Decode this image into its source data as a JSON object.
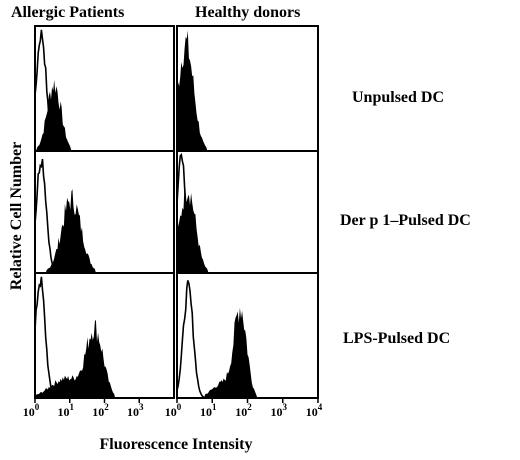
{
  "chart_data": {
    "type": "histogram-grid",
    "column_headers": [
      "Allergic Patients",
      "Healthy donors"
    ],
    "row_labels": [
      "Unpulsed DC",
      "Der p 1–Pulsed DC",
      "LPS-Pulsed DC"
    ],
    "ylabel": "Relative Cell Number",
    "xlabel": "Fluorescence Intensity",
    "x_scale": "log",
    "xlim": [
      1,
      10000
    ],
    "x_ticks": [
      {
        "value": 1,
        "label_base": "10",
        "label_exp": "0"
      },
      {
        "value": 10,
        "label_base": "10",
        "label_exp": "1"
      },
      {
        "value": 100,
        "label_base": "10",
        "label_exp": "2"
      },
      {
        "value": 1000,
        "label_base": "10",
        "label_exp": "3"
      },
      {
        "value": 10000,
        "label_base": "10",
        "label_exp": "4"
      }
    ],
    "panels": [
      {
        "row": 0,
        "col": 0,
        "control": {
          "peak_log": 0.18,
          "width": 0.14,
          "height": 0.97
        },
        "filled": [
          {
            "peak_log": 0.55,
            "width": 0.2,
            "height": 0.55
          }
        ]
      },
      {
        "row": 0,
        "col": 1,
        "control": null,
        "filled": [
          {
            "peak_log": 0.25,
            "width": 0.22,
            "height": 0.88
          }
        ]
      },
      {
        "row": 1,
        "col": 0,
        "control": {
          "peak_log": 0.18,
          "width": 0.14,
          "height": 0.97
        },
        "filled": [
          {
            "peak_log": 1.05,
            "width": 0.28,
            "height": 0.62
          }
        ]
      },
      {
        "row": 1,
        "col": 1,
        "control": {
          "peak_log": 0.12,
          "width": 0.12,
          "height": 0.97
        },
        "filled": [
          {
            "peak_log": 0.3,
            "width": 0.22,
            "height": 0.72
          }
        ]
      },
      {
        "row": 2,
        "col": 0,
        "control": {
          "peak_log": 0.15,
          "width": 0.14,
          "height": 0.97
        },
        "filled": [
          {
            "peak_log": 1.72,
            "width": 0.24,
            "height": 0.55
          },
          {
            "peak_log": 0.9,
            "width": 0.45,
            "height": 0.16
          }
        ]
      },
      {
        "row": 2,
        "col": 1,
        "control": {
          "peak_log": 0.32,
          "width": 0.14,
          "height": 0.9
        },
        "filled": [
          {
            "peak_log": 1.8,
            "width": 0.18,
            "height": 0.72
          },
          {
            "peak_log": 1.3,
            "width": 0.3,
            "height": 0.12
          }
        ]
      }
    ]
  }
}
